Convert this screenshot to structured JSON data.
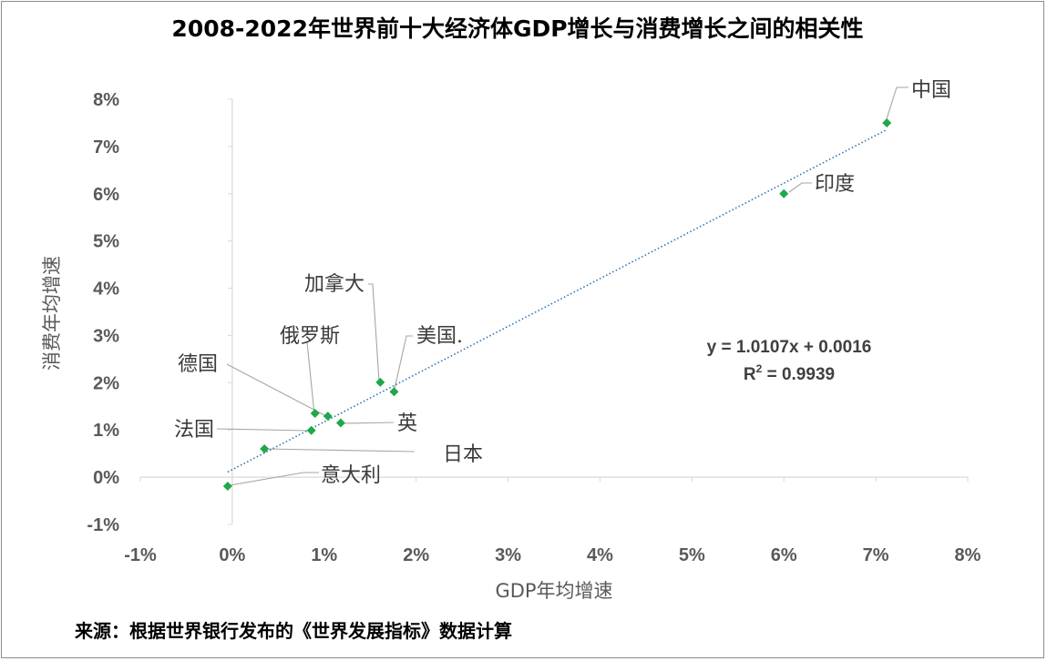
{
  "chart_data": {
    "type": "scatter",
    "title": "2008-2022年世界前十大经济体GDP增长与消费增长之间的相关性",
    "xlabel": "GDP年均增速",
    "ylabel": "消费年均增速",
    "xlim": [
      -0.01,
      0.08
    ],
    "ylim": [
      -0.01,
      0.08
    ],
    "x_ticks": [
      -0.01,
      0,
      0.01,
      0.02,
      0.03,
      0.04,
      0.05,
      0.06,
      0.07,
      0.08
    ],
    "y_ticks": [
      -0.01,
      0,
      0.01,
      0.02,
      0.03,
      0.04,
      0.05,
      0.06,
      0.07,
      0.08
    ],
    "x_tick_labels": [
      "-1%",
      "0%",
      "1%",
      "2%",
      "3%",
      "4%",
      "5%",
      "6%",
      "7%",
      "8%"
    ],
    "y_tick_labels": [
      "-1%",
      "0%",
      "1%",
      "2%",
      "3%",
      "4%",
      "5%",
      "6%",
      "7%",
      "8%"
    ],
    "marker_color": "#1fa84a",
    "trendline_color": "#2e75b6",
    "trendline": {
      "slope": 1.0107,
      "intercept": 0.0016,
      "x_range": [
        -0.0005,
        0.0712
      ]
    },
    "equation": "y = 1.0107x + 0.0016",
    "r_squared_prefix": "R",
    "r_squared_sup": "2",
    "r_squared_value": " = 0.9939",
    "points": [
      {
        "name": "中国",
        "x": 0.0712,
        "y": 0.075
      },
      {
        "name": "印度",
        "x": 0.06,
        "y": 0.06
      },
      {
        "name": "加拿大",
        "x": 0.0161,
        "y": 0.0201
      },
      {
        "name": "美国.",
        "x": 0.0176,
        "y": 0.0181
      },
      {
        "name": "俄罗斯",
        "x": 0.009,
        "y": 0.0135
      },
      {
        "name": "德国",
        "x": 0.0104,
        "y": 0.0129
      },
      {
        "name": "英",
        "x": 0.0118,
        "y": 0.0115
      },
      {
        "name": "法国",
        "x": 0.0086,
        "y": 0.0099
      },
      {
        "name": "日本",
        "x": 0.0035,
        "y": 0.006
      },
      {
        "name": "意大利",
        "x": -0.0005,
        "y": -0.0019
      }
    ]
  },
  "source_note": "来源：根据世界银行发布的《世界发展指标》数据计算"
}
